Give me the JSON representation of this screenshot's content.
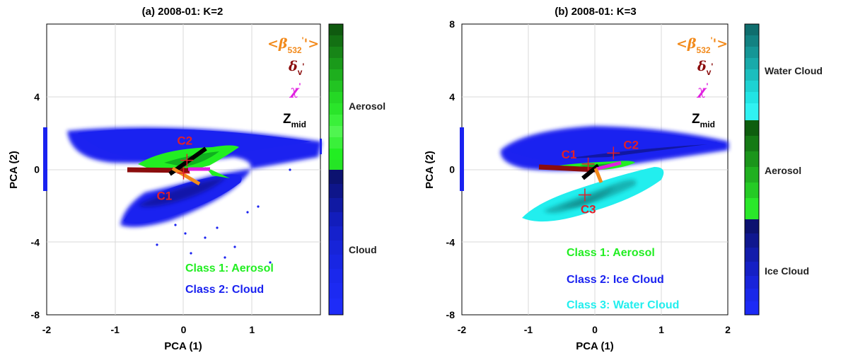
{
  "chart_data": [
    {
      "type": "scatter",
      "title": "(a) 2008-01: K=2",
      "xlabel": "PCA (1)",
      "ylabel": "PCA (2)",
      "xlim": [
        -2,
        2
      ],
      "ylim": [
        -8,
        8
      ],
      "xticks": [
        "-2",
        "-1",
        "0",
        "1"
      ],
      "yticks": [
        "-8",
        "-4",
        "0",
        "4"
      ],
      "grid": true,
      "colorbar": {
        "labels": [
          "Aerosol",
          "Cloud"
        ],
        "colors": [
          "#2cc12c",
          "#1c24e0"
        ]
      },
      "classes": [
        {
          "name": "Class 1: Aerosol",
          "color": "#22ee22"
        },
        {
          "name": "Class 2: Cloud",
          "color": "#1a22f0"
        }
      ],
      "centroids": [
        {
          "label": "C1",
          "x": 0.0,
          "y": -0.2
        },
        {
          "label": "C2",
          "x": 0.05,
          "y": 0.5
        }
      ],
      "variable_labels": [
        "<β'532'>",
        "δv'",
        "χ'",
        "Zmid"
      ]
    },
    {
      "type": "scatter",
      "title": "(b) 2008-01: K=3",
      "xlabel": "PCA (1)",
      "ylabel": "PCA (2)",
      "xlim": [
        -2,
        2
      ],
      "ylim": [
        -8,
        8
      ],
      "xticks": [
        "-2",
        "-1",
        "0",
        "1",
        "2"
      ],
      "yticks": [
        "-8",
        "-4",
        "0",
        "4",
        "8"
      ],
      "grid": true,
      "colorbar": {
        "labels": [
          "Water Cloud",
          "Aerosol",
          "Ice Cloud"
        ],
        "colors": [
          "#19c4c4",
          "#2cc12c",
          "#1c24e0"
        ]
      },
      "classes": [
        {
          "name": "Class 1: Aerosol",
          "color": "#22ee22"
        },
        {
          "name": "Class 2: Ice Cloud",
          "color": "#1a22f0"
        },
        {
          "name": "Class 3: Water Cloud",
          "color": "#22eeee"
        }
      ],
      "centroids": [
        {
          "label": "C1",
          "x": -0.1,
          "y": 0.3
        },
        {
          "label": "C2",
          "x": 0.28,
          "y": 0.9
        },
        {
          "label": "C3",
          "x": -0.15,
          "y": -1.4
        }
      ],
      "variable_labels": [
        "<β'532'>",
        "δv'",
        "χ'",
        "Zmid"
      ]
    }
  ]
}
